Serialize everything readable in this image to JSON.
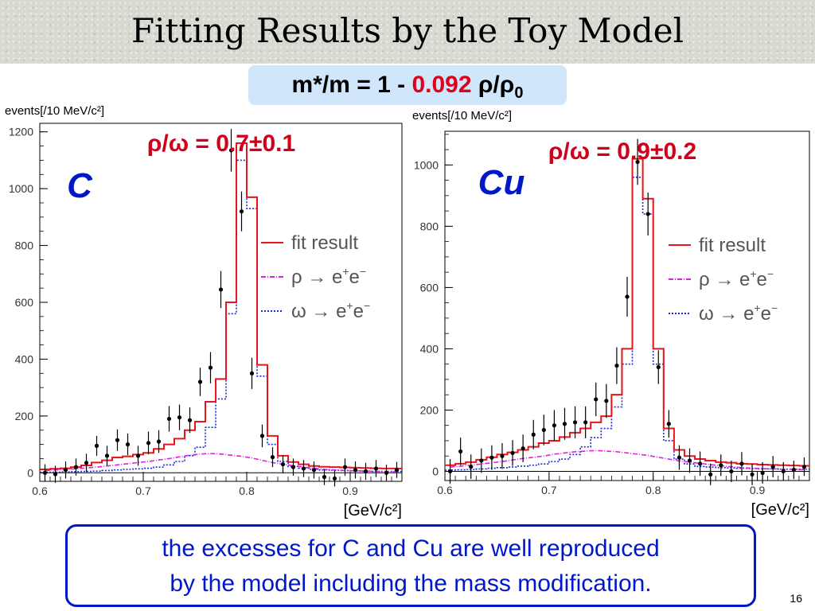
{
  "slide": {
    "title": "Fitting Results by the Toy Model",
    "formula": {
      "prefix": "m*/m = 1 - ",
      "value": "0.092",
      "ratio": "ρ/ρ",
      "ratio_sub": "0"
    },
    "footer_line1": "the excesses for C and Cu are well reproduced",
    "footer_line2": "by the model including the mass modification.",
    "page_number": "16",
    "colors": {
      "fit": "#e8141c",
      "rho": "#e020e0",
      "omega": "#1a2ad8",
      "label_blue": "#0018c8",
      "ratio_red": "#d0001a"
    }
  },
  "chart_data": [
    {
      "type": "histogram",
      "target_label": "C",
      "ratio_label": "ρ/ω = 0.7±0.1",
      "ylabel": "events[/10 MeV/c²]",
      "xlabel": "[GeV/c²]",
      "xlim": [
        0.6,
        0.95
      ],
      "ylim": [
        -30,
        1230
      ],
      "xticks": [
        0.6,
        0.7,
        0.8,
        0.9
      ],
      "xtick_labels": [
        "0.6",
        "0.7",
        "0.8",
        "0.9"
      ],
      "yticks": [
        0,
        200,
        400,
        600,
        800,
        1000,
        1200
      ],
      "ytick_labels": [
        "0",
        "200",
        "400",
        "600",
        "800",
        "1000",
        "1200"
      ],
      "legend": {
        "position": "right",
        "entries": [
          {
            "key": "fit",
            "label": "fit result",
            "main": "fit result",
            "sup1": "",
            "sup2": ""
          },
          {
            "key": "rho",
            "label": "ρ → e⁺e⁻",
            "main": "ρ → e",
            "sup1": "+",
            "mid": "e",
            "sup2": "−"
          },
          {
            "key": "omega",
            "label": "ω → e⁺e⁻",
            "main": "ω → e",
            "sup1": "+",
            "mid": "e",
            "sup2": "−"
          }
        ]
      },
      "bins": {
        "start": 0.6,
        "width": 0.01
      },
      "fit": [
        12,
        14,
        16,
        20,
        26,
        36,
        44,
        54,
        58,
        64,
        70,
        84,
        100,
        120,
        150,
        180,
        250,
        330,
        600,
        1160,
        970,
        380,
        130,
        60,
        38,
        30,
        24,
        21,
        20,
        19,
        18,
        17,
        16,
        15,
        15
      ],
      "rho": [
        8,
        10,
        12,
        14,
        17,
        20,
        24,
        28,
        32,
        36,
        40,
        45,
        50,
        56,
        62,
        66,
        68,
        66,
        62,
        58,
        52,
        44,
        36,
        30,
        25,
        20,
        16,
        12,
        10,
        8,
        7,
        6,
        5,
        5,
        4
      ],
      "omega": [
        2,
        2,
        3,
        4,
        5,
        6,
        8,
        10,
        12,
        14,
        16,
        20,
        28,
        40,
        60,
        90,
        160,
        260,
        560,
        1100,
        930,
        340,
        100,
        40,
        22,
        16,
        12,
        10,
        9,
        8,
        7,
        6,
        5,
        5,
        5
      ],
      "points": [
        {
          "x": 0.605,
          "y": 0,
          "err": 30
        },
        {
          "x": 0.615,
          "y": -5,
          "err": 30
        },
        {
          "x": 0.625,
          "y": 10,
          "err": 30
        },
        {
          "x": 0.635,
          "y": 20,
          "err": 30
        },
        {
          "x": 0.645,
          "y": 35,
          "err": 32
        },
        {
          "x": 0.655,
          "y": 95,
          "err": 35
        },
        {
          "x": 0.665,
          "y": 60,
          "err": 35
        },
        {
          "x": 0.675,
          "y": 115,
          "err": 38
        },
        {
          "x": 0.685,
          "y": 100,
          "err": 38
        },
        {
          "x": 0.695,
          "y": 60,
          "err": 35
        },
        {
          "x": 0.705,
          "y": 105,
          "err": 40
        },
        {
          "x": 0.715,
          "y": 110,
          "err": 40
        },
        {
          "x": 0.725,
          "y": 190,
          "err": 45
        },
        {
          "x": 0.735,
          "y": 195,
          "err": 45
        },
        {
          "x": 0.745,
          "y": 185,
          "err": 45
        },
        {
          "x": 0.755,
          "y": 320,
          "err": 50
        },
        {
          "x": 0.765,
          "y": 370,
          "err": 55
        },
        {
          "x": 0.775,
          "y": 645,
          "err": 65
        },
        {
          "x": 0.785,
          "y": 1135,
          "err": 75
        },
        {
          "x": 0.795,
          "y": 920,
          "err": 70
        },
        {
          "x": 0.805,
          "y": 350,
          "err": 55
        },
        {
          "x": 0.815,
          "y": 130,
          "err": 40
        },
        {
          "x": 0.825,
          "y": 55,
          "err": 35
        },
        {
          "x": 0.835,
          "y": 30,
          "err": 32
        },
        {
          "x": 0.845,
          "y": 20,
          "err": 30
        },
        {
          "x": 0.855,
          "y": 15,
          "err": 30
        },
        {
          "x": 0.865,
          "y": 10,
          "err": 30
        },
        {
          "x": 0.875,
          "y": -15,
          "err": 28
        },
        {
          "x": 0.885,
          "y": -20,
          "err": 28
        },
        {
          "x": 0.895,
          "y": 20,
          "err": 30
        },
        {
          "x": 0.905,
          "y": 10,
          "err": 30
        },
        {
          "x": 0.915,
          "y": 5,
          "err": 30
        },
        {
          "x": 0.925,
          "y": 15,
          "err": 30
        },
        {
          "x": 0.935,
          "y": 0,
          "err": 28
        },
        {
          "x": 0.945,
          "y": 10,
          "err": 28
        }
      ]
    },
    {
      "type": "histogram",
      "target_label": "Cu",
      "ratio_label": "ρ/ω = 0.9±0.2",
      "ylabel": "events[/10 MeV/c²]",
      "xlabel": "[GeV/c²]",
      "xlim": [
        0.6,
        0.95
      ],
      "ylim": [
        -30,
        1110
      ],
      "xticks": [
        0.6,
        0.7,
        0.8,
        0.9
      ],
      "xtick_labels": [
        "0.6",
        "0.7",
        "0.8",
        "0.9"
      ],
      "yticks": [
        0,
        200,
        400,
        600,
        800,
        1000
      ],
      "ytick_labels": [
        "0",
        "200",
        "400",
        "600",
        "800",
        "1000"
      ],
      "legend": {
        "position": "right",
        "entries": [
          {
            "key": "fit",
            "label": "fit result",
            "main": "fit result",
            "sup1": "",
            "sup2": ""
          },
          {
            "key": "rho",
            "label": "ρ → e⁺e⁻",
            "main": "ρ → e",
            "sup1": "+",
            "mid": "e",
            "sup2": "−"
          },
          {
            "key": "omega",
            "label": "ω → e⁺e⁻",
            "main": "ω → e",
            "sup1": "+",
            "mid": "e",
            "sup2": "−"
          }
        ]
      },
      "bins": {
        "start": 0.6,
        "width": 0.01
      },
      "fit": [
        20,
        25,
        30,
        38,
        46,
        55,
        62,
        70,
        80,
        92,
        100,
        112,
        126,
        140,
        160,
        180,
        250,
        400,
        1020,
        890,
        400,
        140,
        70,
        50,
        40,
        35,
        30,
        28,
        25,
        24,
        22,
        21,
        20,
        19,
        18
      ],
      "rho": [
        14,
        17,
        20,
        24,
        28,
        32,
        37,
        42,
        46,
        50,
        56,
        60,
        64,
        66,
        68,
        66,
        64,
        60,
        56,
        52,
        46,
        40,
        34,
        30,
        26,
        22,
        18,
        15,
        12,
        10,
        9,
        8,
        7,
        6,
        5
      ],
      "omega": [
        4,
        5,
        6,
        8,
        10,
        12,
        14,
        17,
        20,
        24,
        32,
        40,
        55,
        80,
        110,
        140,
        210,
        350,
        960,
        840,
        350,
        100,
        40,
        24,
        16,
        14,
        12,
        11,
        10,
        9,
        8,
        8,
        7,
        7,
        7
      ],
      "points": [
        {
          "x": 0.605,
          "y": 0,
          "err": 40
        },
        {
          "x": 0.615,
          "y": 65,
          "err": 45
        },
        {
          "x": 0.625,
          "y": 15,
          "err": 40
        },
        {
          "x": 0.635,
          "y": 35,
          "err": 40
        },
        {
          "x": 0.645,
          "y": 45,
          "err": 40
        },
        {
          "x": 0.655,
          "y": 50,
          "err": 42
        },
        {
          "x": 0.665,
          "y": 60,
          "err": 42
        },
        {
          "x": 0.675,
          "y": 75,
          "err": 45
        },
        {
          "x": 0.685,
          "y": 120,
          "err": 48
        },
        {
          "x": 0.695,
          "y": 135,
          "err": 50
        },
        {
          "x": 0.705,
          "y": 150,
          "err": 50
        },
        {
          "x": 0.715,
          "y": 155,
          "err": 52
        },
        {
          "x": 0.725,
          "y": 160,
          "err": 52
        },
        {
          "x": 0.735,
          "y": 160,
          "err": 52
        },
        {
          "x": 0.745,
          "y": 235,
          "err": 55
        },
        {
          "x": 0.755,
          "y": 230,
          "err": 55
        },
        {
          "x": 0.765,
          "y": 345,
          "err": 60
        },
        {
          "x": 0.775,
          "y": 570,
          "err": 65
        },
        {
          "x": 0.785,
          "y": 1010,
          "err": 75
        },
        {
          "x": 0.795,
          "y": 840,
          "err": 70
        },
        {
          "x": 0.805,
          "y": 340,
          "err": 55
        },
        {
          "x": 0.815,
          "y": 155,
          "err": 45
        },
        {
          "x": 0.825,
          "y": 45,
          "err": 40
        },
        {
          "x": 0.835,
          "y": 35,
          "err": 40
        },
        {
          "x": 0.845,
          "y": 25,
          "err": 40
        },
        {
          "x": 0.855,
          "y": -10,
          "err": 35
        },
        {
          "x": 0.865,
          "y": 20,
          "err": 35
        },
        {
          "x": 0.875,
          "y": 0,
          "err": 35
        },
        {
          "x": 0.885,
          "y": 25,
          "err": 38
        },
        {
          "x": 0.895,
          "y": -10,
          "err": 35
        },
        {
          "x": 0.905,
          "y": -5,
          "err": 35
        },
        {
          "x": 0.915,
          "y": 15,
          "err": 35
        },
        {
          "x": 0.925,
          "y": 0,
          "err": 30
        },
        {
          "x": 0.935,
          "y": 5,
          "err": 30
        },
        {
          "x": 0.945,
          "y": 15,
          "err": 30
        }
      ]
    }
  ]
}
